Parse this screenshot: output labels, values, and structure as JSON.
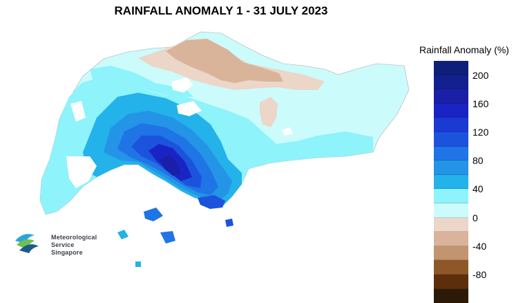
{
  "title": "RAINFALL ANOMALY 1 - 31 JULY 2023",
  "legend": {
    "title": "Rainfall Anomaly (%)",
    "tick_labels": [
      "200",
      "160",
      "120",
      "80",
      "40",
      "0",
      "-40",
      "-80"
    ],
    "bins": [
      {
        "color": "#0d1f78"
      },
      {
        "color": "#12208f"
      },
      {
        "color": "#1a1fa8"
      },
      {
        "color": "#1a24c4"
      },
      {
        "color": "#1b3ad4"
      },
      {
        "color": "#1c53dc"
      },
      {
        "color": "#1f74e6"
      },
      {
        "color": "#2394e6"
      },
      {
        "color": "#23b2ea"
      },
      {
        "color": "#8ef3fb"
      },
      {
        "color": "#ccfbfb"
      },
      {
        "color": "#ecd6c8"
      },
      {
        "color": "#d9b49a"
      },
      {
        "color": "#c39470"
      },
      {
        "color": "#8e5727"
      },
      {
        "color": "#5c2e0b"
      },
      {
        "color": "#2c1a06"
      }
    ]
  },
  "logo": {
    "line1": "Meteorological",
    "line2": "Service",
    "line3": "Singapore"
  }
}
